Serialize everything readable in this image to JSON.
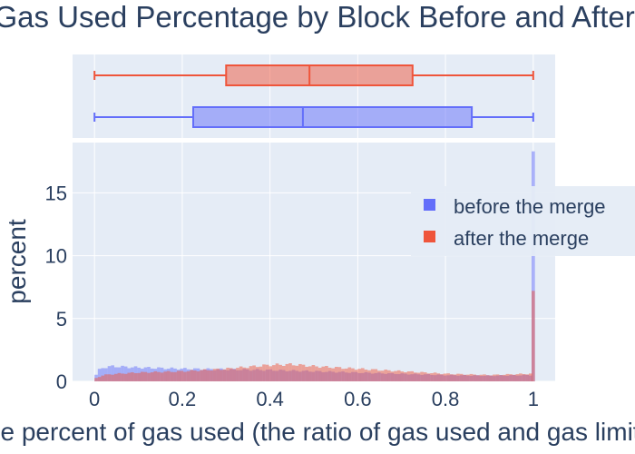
{
  "chart_data": {
    "type": "histogram",
    "title": "Distribution of Gas Used Percentage by Block Before and After the Merge",
    "xlabel": "the percent of gas used (the ratio of gas used and gas limit)",
    "ylabel": "percent",
    "xlim": [
      -0.05,
      1.05
    ],
    "ylim": [
      0,
      19
    ],
    "x_ticks": [
      "0",
      "0.2",
      "0.4",
      "0.6",
      "0.8",
      "1"
    ],
    "y_ticks": [
      "0",
      "5",
      "10",
      "15"
    ],
    "bin_width": 0.0075,
    "legend": {
      "position": "right"
    },
    "grid": true,
    "series": [
      {
        "name": "before the merge",
        "color": "#636efa",
        "boxplot": {
          "min": 0,
          "q1": 0.225,
          "median": 0.475,
          "q3": 0.86,
          "max": 1
        },
        "hist_profile": [
          [
            0.0,
            0.3
          ],
          [
            0.01,
            0.9
          ],
          [
            0.02,
            1.1
          ],
          [
            0.04,
            1.2
          ],
          [
            0.1,
            1.1
          ],
          [
            0.2,
            1.0
          ],
          [
            0.3,
            0.95
          ],
          [
            0.4,
            0.9
          ],
          [
            0.5,
            0.8
          ],
          [
            0.6,
            0.7
          ],
          [
            0.7,
            0.6
          ],
          [
            0.8,
            0.5
          ],
          [
            0.9,
            0.45
          ],
          [
            0.99,
            0.5
          ]
        ],
        "spike": {
          "x": 1.0,
          "value": 18.3
        }
      },
      {
        "name": "after the merge",
        "color": "#ef553b",
        "boxplot": {
          "min": 0,
          "q1": 0.3,
          "median": 0.49,
          "q3": 0.725,
          "max": 1
        },
        "hist_profile": [
          [
            0.0,
            0.2
          ],
          [
            0.02,
            0.5
          ],
          [
            0.05,
            0.6
          ],
          [
            0.1,
            0.7
          ],
          [
            0.2,
            0.8
          ],
          [
            0.3,
            1.0
          ],
          [
            0.4,
            1.3
          ],
          [
            0.45,
            1.35
          ],
          [
            0.5,
            1.2
          ],
          [
            0.6,
            1.0
          ],
          [
            0.7,
            0.8
          ],
          [
            0.8,
            0.6
          ],
          [
            0.9,
            0.5
          ],
          [
            0.99,
            0.6
          ]
        ],
        "spike": {
          "x": 1.0,
          "value": 7.2
        }
      }
    ]
  }
}
